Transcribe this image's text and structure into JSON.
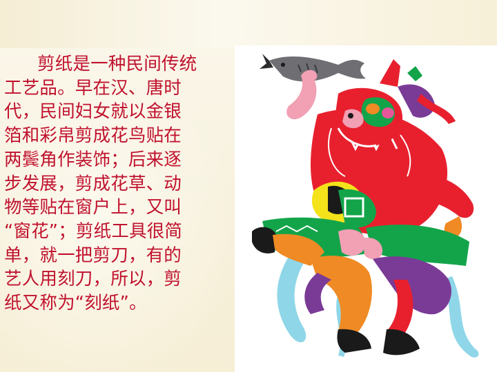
{
  "slide": {
    "paragraph_lines": [
      "剪纸是一种民间传统",
      "工艺品。早在汉、唐时",
      "代，民间妇女就以金银",
      "箔和彩帛剪成花鸟贴在",
      "两鬓角作装饰；后来逐",
      "步发展，剪成花草、动",
      "物等贴在窗户上，又叫",
      "“窗花”；剪纸工具很简",
      "单，就一把剪刀，有的",
      "艺人用刻刀，所以，剪",
      "纸又称为“刻纸”。"
    ],
    "text_color": "#c0112d",
    "image": {
      "subject": "papercut-figure-with-fish",
      "palette": [
        "#e8202e",
        "#13a44a",
        "#f4e21a",
        "#7a3b96",
        "#f08a24",
        "#e6569a",
        "#8fd6e8",
        "#1a1a1a"
      ]
    }
  }
}
